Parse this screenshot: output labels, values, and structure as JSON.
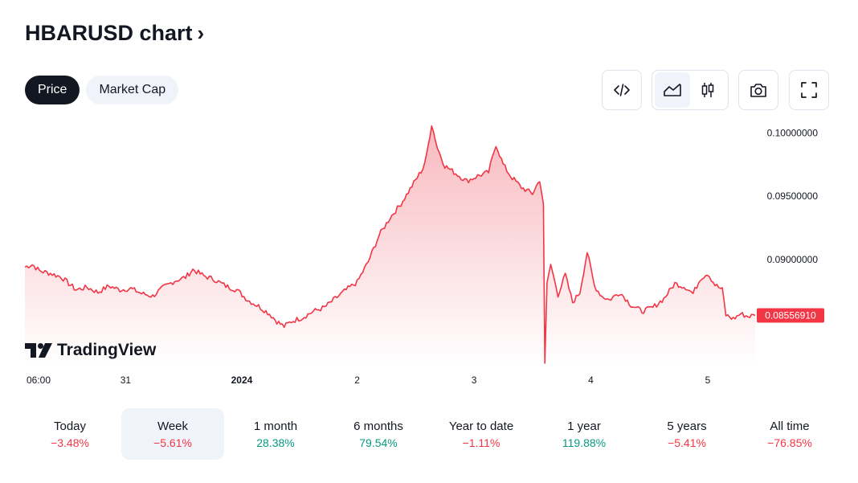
{
  "header": {
    "title": "HBARUSD chart",
    "chevron": "›"
  },
  "tabs": [
    {
      "label": "Price",
      "active": true
    },
    {
      "label": "Market Cap",
      "active": false
    }
  ],
  "toolbar": {
    "icons": [
      "embed-code-icon",
      "area-chart-icon",
      "candlestick-icon",
      "camera-icon",
      "fullscreen-icon"
    ],
    "selected": "area-chart-icon"
  },
  "colors": {
    "line": "#f23645",
    "fill_top": "#f8b9bf",
    "fill_bottom": "#ffffff",
    "active_tab": "#131722",
    "negative": "#f23645",
    "positive": "#089981"
  },
  "chart_data": {
    "type": "area",
    "x_ticks": [
      "06:00",
      "31",
      "2024",
      "2",
      "3",
      "4",
      "5"
    ],
    "y_ticks": [
      "0.10000000",
      "0.09500000",
      "0.09000000"
    ],
    "ylim": [
      0.0816,
      0.1013
    ],
    "last_price": "0.08556910",
    "watermark": "TradingView",
    "series": [
      {
        "points": [
          [
            0.0,
            0.0894
          ],
          [
            0.01,
            0.0896
          ],
          [
            0.02,
            0.0891
          ],
          [
            0.035,
            0.0889
          ],
          [
            0.05,
            0.0886
          ],
          [
            0.06,
            0.0881
          ],
          [
            0.07,
            0.0876
          ],
          [
            0.085,
            0.0878
          ],
          [
            0.1,
            0.0874
          ],
          [
            0.115,
            0.0879
          ],
          [
            0.13,
            0.0876
          ],
          [
            0.145,
            0.0877
          ],
          [
            0.16,
            0.0873
          ],
          [
            0.175,
            0.0871
          ],
          [
            0.19,
            0.0878
          ],
          [
            0.205,
            0.0883
          ],
          [
            0.22,
            0.0886
          ],
          [
            0.23,
            0.0892
          ],
          [
            0.245,
            0.0887
          ],
          [
            0.26,
            0.0884
          ],
          [
            0.275,
            0.0879
          ],
          [
            0.29,
            0.0876
          ],
          [
            0.305,
            0.0868
          ],
          [
            0.32,
            0.0863
          ],
          [
            0.335,
            0.0857
          ],
          [
            0.345,
            0.0851
          ],
          [
            0.355,
            0.0847
          ],
          [
            0.365,
            0.0851
          ],
          [
            0.38,
            0.0854
          ],
          [
            0.395,
            0.0859
          ],
          [
            0.41,
            0.0862
          ],
          [
            0.425,
            0.0869
          ],
          [
            0.44,
            0.0876
          ],
          [
            0.455,
            0.0882
          ],
          [
            0.47,
            0.0898
          ],
          [
            0.485,
            0.0919
          ],
          [
            0.5,
            0.0933
          ],
          [
            0.515,
            0.0944
          ],
          [
            0.53,
            0.0958
          ],
          [
            0.545,
            0.0972
          ],
          [
            0.55,
            0.0982
          ],
          [
            0.557,
            0.1007
          ],
          [
            0.565,
            0.0988
          ],
          [
            0.575,
            0.0974
          ],
          [
            0.59,
            0.0968
          ],
          [
            0.605,
            0.0962
          ],
          [
            0.62,
            0.0966
          ],
          [
            0.635,
            0.0969
          ],
          [
            0.645,
            0.0991
          ],
          [
            0.655,
            0.0975
          ],
          [
            0.665,
            0.0966
          ],
          [
            0.68,
            0.0957
          ],
          [
            0.695,
            0.0952
          ],
          [
            0.705,
            0.0963
          ],
          [
            0.71,
            0.0944
          ],
          [
            0.712,
            0.0818
          ],
          [
            0.715,
            0.088
          ],
          [
            0.72,
            0.0896
          ],
          [
            0.73,
            0.0872
          ],
          [
            0.74,
            0.0888
          ],
          [
            0.75,
            0.0866
          ],
          [
            0.76,
            0.0874
          ],
          [
            0.77,
            0.0906
          ],
          [
            0.78,
            0.0879
          ],
          [
            0.79,
            0.0871
          ],
          [
            0.8,
            0.0868
          ],
          [
            0.815,
            0.0874
          ],
          [
            0.83,
            0.0864
          ],
          [
            0.845,
            0.0859
          ],
          [
            0.86,
            0.0862
          ],
          [
            0.875,
            0.0869
          ],
          [
            0.89,
            0.0881
          ],
          [
            0.905,
            0.0878
          ],
          [
            0.915,
            0.0873
          ],
          [
            0.925,
            0.0885
          ],
          [
            0.935,
            0.0889
          ],
          [
            0.945,
            0.088
          ],
          [
            0.955,
            0.0876
          ],
          [
            0.96,
            0.0856
          ],
          [
            0.97,
            0.0853
          ],
          [
            0.98,
            0.0857
          ],
          [
            0.99,
            0.0855
          ],
          [
            1.0,
            0.08557
          ]
        ]
      }
    ]
  },
  "periods": [
    {
      "name": "Today",
      "value": "−3.48%",
      "trend": "neg",
      "selected": false
    },
    {
      "name": "Week",
      "value": "−5.61%",
      "trend": "neg",
      "selected": true
    },
    {
      "name": "1 month",
      "value": "28.38%",
      "trend": "pos",
      "selected": false
    },
    {
      "name": "6 months",
      "value": "79.54%",
      "trend": "pos",
      "selected": false
    },
    {
      "name": "Year to date",
      "value": "−1.11%",
      "trend": "neg",
      "selected": false
    },
    {
      "name": "1 year",
      "value": "119.88%",
      "trend": "pos",
      "selected": false
    },
    {
      "name": "5 years",
      "value": "−5.41%",
      "trend": "neg",
      "selected": false
    },
    {
      "name": "All time",
      "value": "−76.85%",
      "trend": "neg",
      "selected": false
    }
  ]
}
